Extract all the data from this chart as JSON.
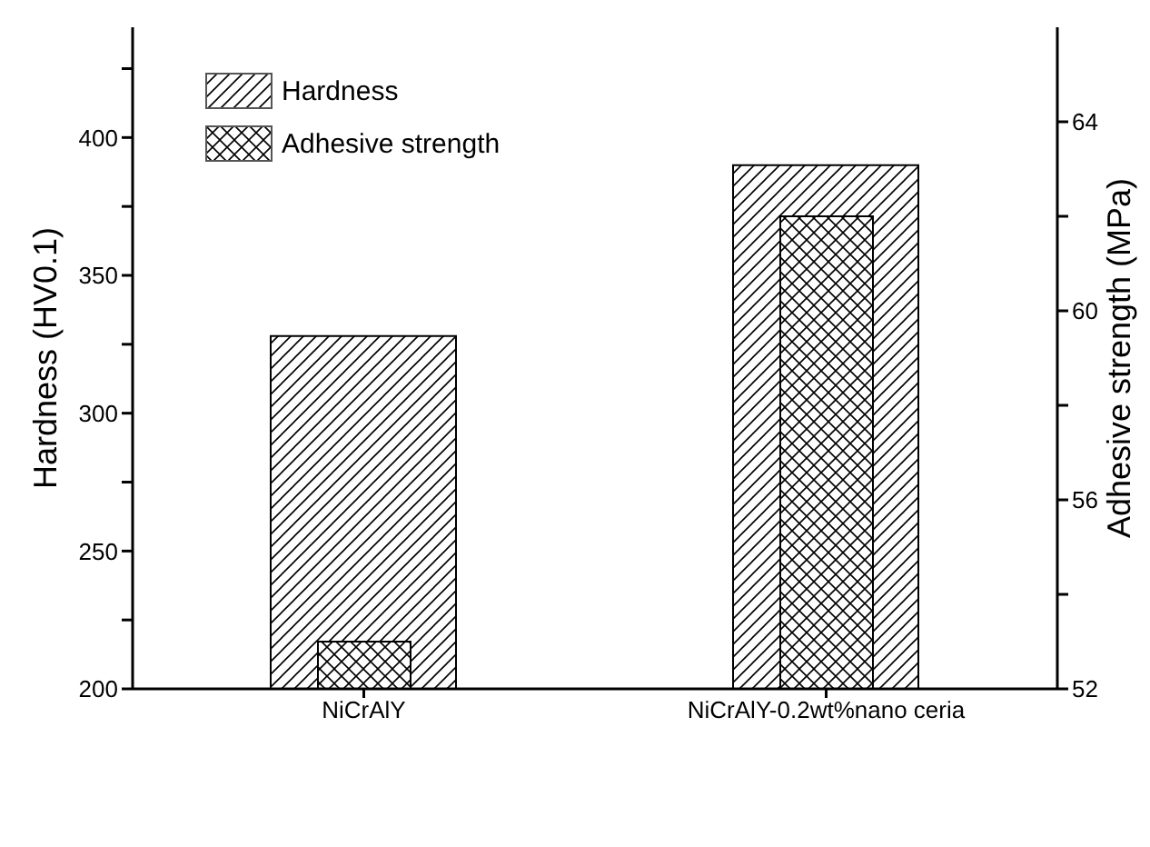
{
  "chart_data": {
    "type": "bar",
    "categories": [
      "NiCrAlY",
      "NiCrAlY-0.2wt%nano ceria"
    ],
    "ylabel": "Hardness (HV0.1)",
    "y2label": "Adhesive strength (MPa)",
    "series": [
      {
        "name": "Hardness",
        "color": "#000000",
        "values": [
          328,
          390
        ]
      },
      {
        "name": "Adhesive strength",
        "color": "#000000",
        "values": [
          53,
          62
        ],
        "axis": "y2"
      }
    ],
    "ylim": [
      200,
      440
    ],
    "yticks": [
      200,
      {
        "value": 225,
        "label": null
      },
      250,
      {
        "value": 275,
        "label": null
      },
      300,
      {
        "value": 325,
        "label": null
      },
      350,
      {
        "value": 375,
        "label": null
      },
      400,
      {
        "value": 425,
        "label": null
      }
    ],
    "y2lim": [
      52,
      66
    ],
    "y2ticks": [
      52,
      {
        "value": 54,
        "label": null
      },
      56,
      {
        "value": 58,
        "label": null
      },
      60,
      {
        "value": 62,
        "label": null
      },
      64
    ],
    "legend": "top left"
  }
}
